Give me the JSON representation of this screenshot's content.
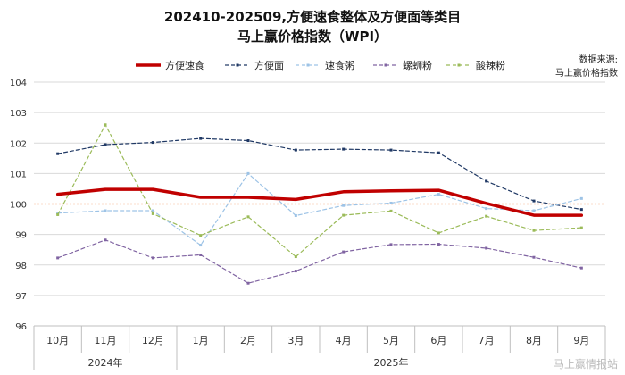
{
  "title_line1": "202410-202509,方便速食整体及方便面等类目",
  "title_line2": "马上赢价格指数（WPI）",
  "source_label": "数据来源:",
  "source_name": "马上赢价格指数",
  "watermark": "马上赢情报站",
  "colors": {
    "方便速食": "#c00000",
    "方便面": "#1f3864",
    "速食粥": "#9dc3e6",
    "螺蛳粉": "#8064a2",
    "酸辣粉": "#9bbb59",
    "reference": "#ed7d31"
  },
  "chart_data": {
    "type": "line",
    "categories": [
      "10月",
      "11月",
      "12月",
      "1月",
      "2月",
      "3月",
      "4月",
      "5月",
      "6月",
      "7月",
      "8月",
      "9月"
    ],
    "year_groups": [
      {
        "label": "2024年",
        "start": 0,
        "end": 2
      },
      {
        "label": "2025年",
        "start": 3,
        "end": 11
      }
    ],
    "ylim": [
      96,
      104
    ],
    "yticks": [
      96,
      97,
      98,
      99,
      100,
      101,
      102,
      103,
      104
    ],
    "reference_line": 100,
    "legend_position": "top",
    "series": [
      {
        "name": "方便速食",
        "values": [
          100.32,
          100.48,
          100.48,
          100.22,
          100.22,
          100.15,
          100.4,
          100.43,
          100.45,
          100.02,
          99.63,
          99.63
        ]
      },
      {
        "name": "方便面",
        "values": [
          101.65,
          101.95,
          102.02,
          102.15,
          102.08,
          101.77,
          101.8,
          101.77,
          101.68,
          100.75,
          100.1,
          99.82
        ]
      },
      {
        "name": "速食粥",
        "values": [
          99.7,
          99.78,
          99.78,
          98.65,
          101.0,
          99.62,
          99.95,
          100.03,
          100.32,
          99.85,
          99.78,
          100.18
        ]
      },
      {
        "name": "螺蛳粉",
        "values": [
          98.23,
          98.82,
          98.23,
          98.33,
          97.4,
          97.8,
          98.43,
          98.67,
          98.68,
          98.55,
          98.25,
          97.9
        ]
      },
      {
        "name": "酸辣粉",
        "values": [
          99.65,
          102.6,
          99.68,
          98.97,
          99.58,
          98.27,
          99.63,
          99.77,
          99.05,
          99.6,
          99.13,
          99.22
        ]
      }
    ]
  }
}
